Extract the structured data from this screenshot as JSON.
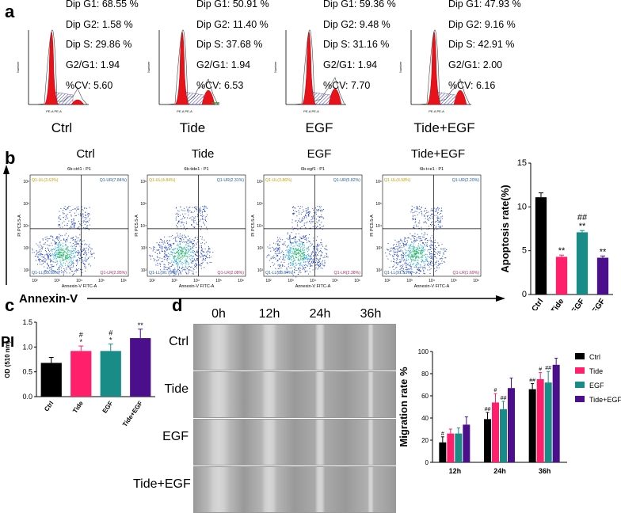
{
  "panels": {
    "a": "a",
    "b": "b",
    "c": "c",
    "d": "d"
  },
  "panel_a": {
    "groups": [
      {
        "name": "Ctrl",
        "g1": "Dip G1: 68.55 %",
        "g2": "Dip G2: 1.58 %",
        "s": "Dip S: 29.86 %",
        "ratio": "G2/G1: 1.94",
        "cv": "%CV: 5.60"
      },
      {
        "name": "Tide",
        "g1": "Dip G1: 50.91 %",
        "g2": "Dip G2: 11.40 %",
        "s": "Dip S: 37.68 %",
        "ratio": "G2/G1: 1.94",
        "cv": "%CV: 6.53"
      },
      {
        "name": "EGF",
        "g1": "Dip G1: 59.36 %",
        "g2": "Dip G2: 9.48 %",
        "s": "Dip S: 31.16 %",
        "ratio": "G2/G1: 1.94",
        "cv": "%CV: 7.70"
      },
      {
        "name": "Tide+EGF",
        "g1": "Dip G1: 47.93 %",
        "g2": "Dip G2: 9.16 %",
        "s": "Dip S: 42.91 %",
        "ratio": "G2/G1: 2.00",
        "cv": "%CV: 6.16"
      }
    ],
    "xaxis": "PE-A PE-A",
    "yaxis": "Number"
  },
  "panel_b": {
    "groups": [
      {
        "name": "Ctrl",
        "sample": "6b-ctrl1 : P1",
        "ul": "Q1-UL(3.63%)",
        "ur": "Q1-UR(7.84%)",
        "ll": "Q1-LL(85.58%)",
        "lr": "Q1-LR(2.95%)"
      },
      {
        "name": "Tide",
        "sample": "6b-tide1 : P1",
        "ul": "Q1-UL(4.84%)",
        "ur": "Q1-UR(2.31%)",
        "ll": "Q1-LL(90.78%)",
        "lr": "Q1-LR(2.08%)"
      },
      {
        "name": "EGF",
        "sample": "6b-egf1 : P1",
        "ul": "Q1-UL(3.86%)",
        "ur": "Q1-UR(5.82%)",
        "ll": "Q1-LL(88.64%)",
        "lr": "Q1-LR(2.38%)"
      },
      {
        "name": "Tide+EGF",
        "sample": "6b-t+e1 : P1",
        "ul": "Q1-UL(4.58%)",
        "ur": "Q1-UR(2.20%)",
        "ll": "Q1-LL(91.53%)",
        "lr": "Q1-LR(1.69%)"
      }
    ],
    "flow_x": "Annexin-V FITC-A",
    "flow_y": "PI PC5.5-A",
    "x_ticks": [
      "10²",
      "10³",
      "10⁴",
      "10⁵",
      "10⁶"
    ],
    "y_ticks": [
      "10²",
      "10³",
      "10⁴",
      "10⁵",
      "10⁶"
    ],
    "axis_pi": "PI",
    "axis_annexin": "Annexin-V"
  },
  "panel_d": {
    "times": [
      "0h",
      "12h",
      "24h",
      "36h"
    ],
    "rows": [
      "Ctrl",
      "Tide",
      "EGF",
      "Tide+EGF"
    ]
  },
  "colors": {
    "ctrl": "#000000",
    "tide": "#ff1f6b",
    "egf": "#1a8c87",
    "tide_egf": "#4b0f8c",
    "red": "#e8121b"
  },
  "chart_data": [
    {
      "id": "apoptosis",
      "type": "bar",
      "title": "",
      "ylabel": "Apoptosis rate(%)",
      "categories": [
        "Ctrl",
        "Tide",
        "EGF",
        "Tide+EGF"
      ],
      "values": [
        11.1,
        4.3,
        7.1,
        4.2
      ],
      "errors": [
        0.5,
        0.2,
        0.2,
        0.2
      ],
      "annotations": [
        [
          "",
          ""
        ],
        [
          "**",
          ""
        ],
        [
          "**",
          "##"
        ],
        [
          "**",
          ""
        ]
      ],
      "ylim": [
        0,
        15
      ],
      "yticks": [
        0,
        5,
        10,
        15
      ]
    },
    {
      "id": "od",
      "type": "bar",
      "title": "",
      "ylabel": "OD (510 nm)",
      "categories": [
        "Ctrl",
        "Tide",
        "EGF",
        "Tide+EGF"
      ],
      "values": [
        0.68,
        0.92,
        0.92,
        1.18
      ],
      "errors": [
        0.11,
        0.1,
        0.14,
        0.18
      ],
      "annotations": [
        [
          "",
          ""
        ],
        [
          "*",
          "#"
        ],
        [
          "*",
          "#"
        ],
        [
          "**",
          ""
        ]
      ],
      "ylim": [
        0,
        1.5
      ],
      "yticks": [
        "0.0",
        "0.5",
        "1.0",
        "1.5"
      ]
    },
    {
      "id": "migration",
      "type": "bar",
      "title": "",
      "ylabel": "Migration rate %",
      "categories": [
        "12h",
        "24h",
        "36h"
      ],
      "series": [
        {
          "name": "Ctrl",
          "values": [
            18,
            39,
            66
          ],
          "errors": [
            5,
            6,
            5
          ],
          "marks": [
            "#",
            "##",
            "##"
          ]
        },
        {
          "name": "Tide",
          "values": [
            26,
            54,
            75
          ],
          "errors": [
            4,
            8,
            6
          ],
          "marks": [
            "",
            "#",
            "#"
          ]
        },
        {
          "name": "EGF",
          "values": [
            26,
            48,
            72
          ],
          "errors": [
            5,
            7,
            10
          ],
          "marks": [
            "",
            "##",
            "##"
          ]
        },
        {
          "name": "Tide+EGF",
          "values": [
            34,
            67,
            88
          ],
          "errors": [
            7,
            9,
            6
          ],
          "marks": [
            "",
            "",
            ""
          ]
        }
      ],
      "ylim": [
        0,
        100
      ],
      "yticks": [
        0,
        20,
        40,
        60,
        80,
        100
      ]
    }
  ]
}
